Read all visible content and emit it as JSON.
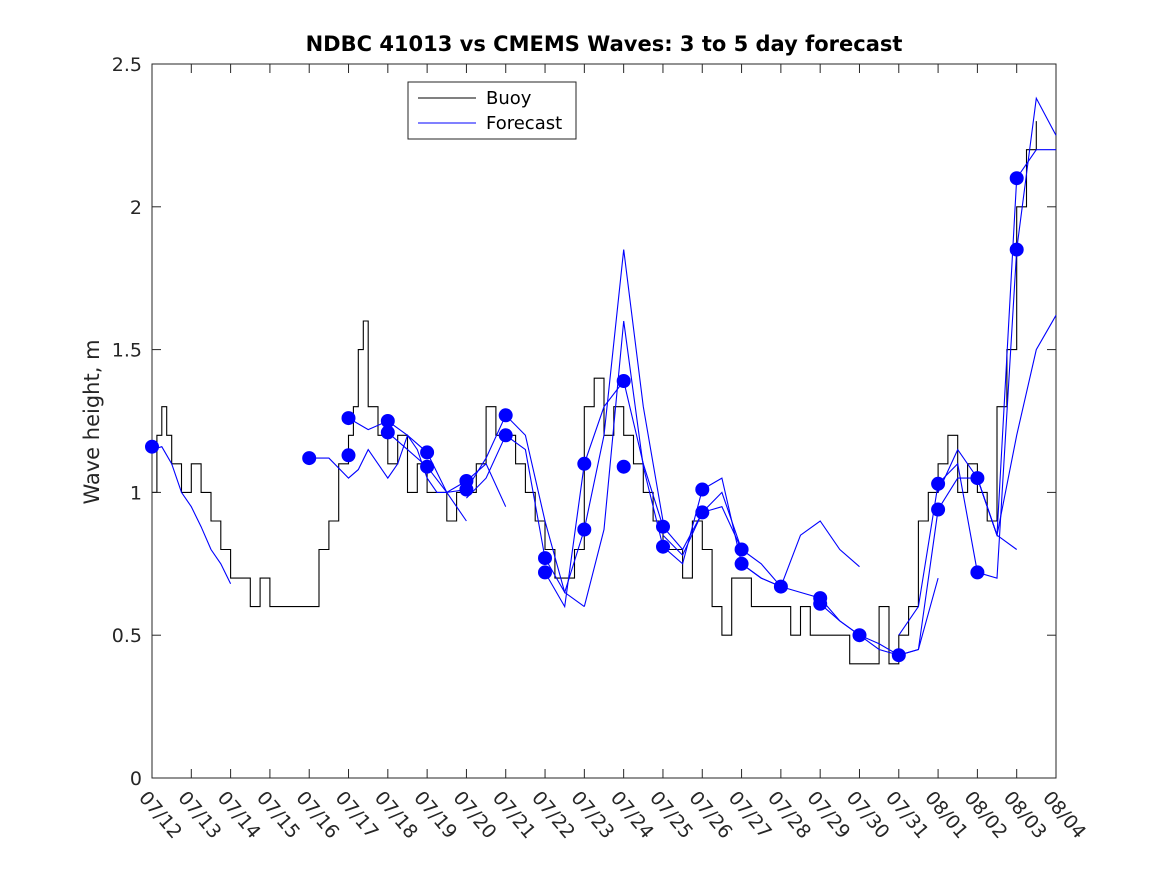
{
  "chart_data": {
    "type": "line",
    "title": "NDBC 41013 vs CMEMS Waves: 3 to 5 day forecast",
    "xlabel": "",
    "ylabel": "Wave height, m",
    "ylim": [
      0,
      2.5
    ],
    "yticks": [
      0,
      0.5,
      1,
      1.5,
      2,
      2.5
    ],
    "ytick_labels": [
      "0",
      "0.5",
      "1",
      "1.5",
      "2",
      "2.5"
    ],
    "xlim": [
      "07/12",
      "08/04"
    ],
    "xtick_labels": [
      "07/12",
      "07/13",
      "07/14",
      "07/15",
      "07/16",
      "07/17",
      "07/18",
      "07/19",
      "07/20",
      "07/21",
      "07/22",
      "07/23",
      "07/24",
      "07/25",
      "07/26",
      "07/27",
      "07/28",
      "07/29",
      "07/30",
      "07/31",
      "08/01",
      "08/02",
      "08/03",
      "08/04"
    ],
    "grid": false,
    "legend": {
      "placement": "top-center",
      "entries": [
        {
          "name": "Buoy",
          "color": "#000000"
        },
        {
          "name": "Forecast",
          "color": "#0000ff"
        }
      ]
    },
    "colors": {
      "buoy": "#000000",
      "forecast": "#0000ff",
      "marker": "#0000ff"
    },
    "series": [
      {
        "name": "Buoy",
        "step": true,
        "x": [
          "07/12 00:00",
          "07/12 03:00",
          "07/12 06:00",
          "07/12 09:00",
          "07/12 12:00",
          "07/12 18:00",
          "07/13 00:00",
          "07/13 06:00",
          "07/13 12:00",
          "07/13 18:00",
          "07/14 00:00",
          "07/14 06:00",
          "07/14 12:00",
          "07/14 18:00",
          "07/15 00:00",
          "07/15 12:00",
          "07/16 00:00",
          "07/16 06:00",
          "07/16 12:00",
          "07/16 18:00",
          "07/17 00:00",
          "07/17 03:00",
          "07/17 06:00",
          "07/17 09:00",
          "07/17 12:00",
          "07/17 18:00",
          "07/18 00:00",
          "07/18 06:00",
          "07/18 12:00",
          "07/18 18:00",
          "07/19 00:00",
          "07/19 06:00",
          "07/19 12:00",
          "07/19 18:00",
          "07/20 00:00",
          "07/20 06:00",
          "07/20 12:00",
          "07/20 18:00",
          "07/21 00:00",
          "07/21 06:00",
          "07/21 12:00",
          "07/21 18:00",
          "07/22 00:00",
          "07/22 06:00",
          "07/22 12:00",
          "07/22 18:00",
          "07/23 00:00",
          "07/23 06:00",
          "07/23 12:00",
          "07/23 18:00",
          "07/24 00:00",
          "07/24 06:00",
          "07/24 12:00",
          "07/24 18:00",
          "07/25 00:00",
          "07/25 06:00",
          "07/25 12:00",
          "07/25 18:00",
          "07/26 00:00",
          "07/26 06:00",
          "07/26 12:00",
          "07/26 18:00",
          "07/27 00:00",
          "07/27 06:00",
          "07/27 12:00",
          "07/27 18:00",
          "07/28 00:00",
          "07/28 06:00",
          "07/28 12:00",
          "07/28 18:00",
          "07/29 00:00",
          "07/29 06:00",
          "07/29 12:00",
          "07/29 18:00",
          "07/30 00:00",
          "07/30 06:00",
          "07/30 12:00",
          "07/30 18:00",
          "07/31 00:00",
          "07/31 06:00",
          "07/31 12:00",
          "07/31 18:00",
          "08/01 00:00",
          "08/01 06:00",
          "08/01 12:00",
          "08/01 18:00",
          "08/02 00:00",
          "08/02 06:00",
          "08/02 12:00",
          "08/02 18:00",
          "08/03 00:00",
          "08/03 06:00",
          "08/03 12:00"
        ],
        "values": [
          1.0,
          1.2,
          1.3,
          1.2,
          1.1,
          1.0,
          1.1,
          1.0,
          0.9,
          0.8,
          0.7,
          0.7,
          0.6,
          0.7,
          0.6,
          0.6,
          0.6,
          0.8,
          0.9,
          1.1,
          1.2,
          1.3,
          1.5,
          1.6,
          1.3,
          1.2,
          1.1,
          1.2,
          1.0,
          1.1,
          1.0,
          1.0,
          0.9,
          1.0,
          1.0,
          1.1,
          1.3,
          1.2,
          1.2,
          1.1,
          1.0,
          0.9,
          0.8,
          0.7,
          0.7,
          0.8,
          1.3,
          1.4,
          1.2,
          1.3,
          1.2,
          1.1,
          1.0,
          0.9,
          0.8,
          0.8,
          0.7,
          0.9,
          0.8,
          0.6,
          0.5,
          0.7,
          0.7,
          0.6,
          0.6,
          0.6,
          0.6,
          0.5,
          0.6,
          0.5,
          0.5,
          0.5,
          0.5,
          0.4,
          0.4,
          0.4,
          0.6,
          0.4,
          0.5,
          0.6,
          0.9,
          1.0,
          1.1,
          1.2,
          1.0,
          1.1,
          1.0,
          0.9,
          1.3,
          1.5,
          2.0,
          2.2,
          2.3
        ]
      },
      {
        "name": "Forecast",
        "x": [
          "07/12 00:00",
          "07/12 06:00",
          "07/12 12:00",
          "07/12 18:00",
          "07/13 00:00",
          "07/13 06:00",
          "07/13 12:00",
          "07/13 18:00",
          "07/14 00:00"
        ],
        "values": [
          1.15,
          1.16,
          1.1,
          1.0,
          0.95,
          0.88,
          0.8,
          0.75,
          0.68
        ]
      },
      {
        "x": [
          "07/16 00:00",
          "07/16 12:00",
          "07/17 00:00",
          "07/17 06:00",
          "07/17 12:00",
          "07/17 18:00",
          "07/18 00:00",
          "07/18 06:00",
          "07/18 12:00",
          "07/18 18:00",
          "07/19 00:00",
          "07/19 06:00",
          "07/19 12:00",
          "07/19 18:00",
          "07/20 00:00"
        ],
        "values": [
          1.12,
          1.12,
          1.05,
          1.08,
          1.15,
          1.1,
          1.05,
          1.1,
          1.2,
          1.15,
          1.05,
          1.0,
          1.0,
          0.95,
          0.9
        ]
      },
      {
        "x": [
          "07/17 00:00",
          "07/17 12:00",
          "07/18 00:00",
          "07/18 12:00",
          "07/19 00:00",
          "07/19 12:00",
          "07/20 00:00",
          "07/20 12:00",
          "07/21 00:00"
        ],
        "values": [
          1.26,
          1.22,
          1.25,
          1.2,
          1.14,
          1.0,
          1.04,
          1.1,
          0.95
        ]
      },
      {
        "x": [
          "07/18 00:00",
          "07/18 12:00",
          "07/19 00:00",
          "07/19 12:00",
          "07/20 00:00",
          "07/20 12:00",
          "07/21 00:00",
          "07/21 12:00",
          "07/22 00:00",
          "07/22 12:00",
          "07/23 00:00"
        ],
        "values": [
          1.21,
          1.15,
          1.09,
          1.0,
          1.01,
          1.12,
          1.27,
          1.2,
          0.9,
          0.65,
          0.6
        ]
      },
      {
        "x": [
          "07/20 00:00",
          "07/20 12:00",
          "07/21 00:00",
          "07/21 12:00",
          "07/22 00:00",
          "07/22 12:00",
          "07/23 00:00",
          "07/23 12:00",
          "07/24 00:00",
          "07/24 12:00",
          "07/25 00:00"
        ],
        "values": [
          0.98,
          1.05,
          1.2,
          1.15,
          0.77,
          0.65,
          0.87,
          1.2,
          1.85,
          1.3,
          0.9
        ]
      },
      {
        "x": [
          "07/22 00:00",
          "07/22 12:00",
          "07/23 00:00",
          "07/23 12:00",
          "07/24 00:00",
          "07/24 12:00",
          "07/25 00:00",
          "07/25 12:00",
          "07/26 00:00",
          "07/26 12:00",
          "07/27 00:00"
        ],
        "values": [
          0.72,
          0.6,
          1.1,
          1.3,
          1.39,
          1.1,
          0.88,
          0.8,
          0.93,
          1.0,
          0.8
        ]
      },
      {
        "x": [
          "07/23 00:00",
          "07/23 12:00",
          "07/24 00:00",
          "07/24 12:00",
          "07/25 00:00",
          "07/25 12:00",
          "07/26 00:00",
          "07/26 12:00",
          "07/27 00:00",
          "07/27 12:00",
          "07/28 00:00"
        ],
        "values": [
          0.6,
          0.87,
          1.6,
          1.09,
          0.81,
          0.75,
          1.01,
          1.05,
          0.75,
          0.7,
          0.67
        ]
      },
      {
        "x": [
          "07/25 00:00",
          "07/25 12:00",
          "07/26 00:00",
          "07/26 12:00",
          "07/27 00:00",
          "07/27 12:00",
          "07/28 00:00",
          "07/28 12:00",
          "07/29 00:00",
          "07/29 12:00",
          "07/30 00:00"
        ],
        "values": [
          0.85,
          0.78,
          0.93,
          0.95,
          0.8,
          0.75,
          0.67,
          0.85,
          0.9,
          0.8,
          0.74
        ]
      },
      {
        "x": [
          "07/27 00:00",
          "07/27 12:00",
          "07/28 00:00",
          "07/28 12:00",
          "07/29 00:00",
          "07/29 12:00",
          "07/30 00:00",
          "07/30 12:00",
          "07/31 00:00",
          "07/31 12:00",
          "08/01 00:00"
        ],
        "values": [
          0.75,
          0.7,
          0.67,
          0.65,
          0.63,
          0.55,
          0.5,
          0.45,
          0.43,
          0.45,
          0.7
        ]
      },
      {
        "x": [
          "07/29 00:00",
          "07/29 12:00",
          "07/30 00:00",
          "07/30 12:00",
          "07/31 00:00",
          "07/31 12:00",
          "08/01 00:00",
          "08/01 12:00",
          "08/02 00:00",
          "08/02 12:00",
          "08/03 00:00"
        ],
        "values": [
          0.61,
          0.55,
          0.5,
          0.47,
          0.43,
          0.45,
          0.94,
          1.05,
          1.05,
          0.85,
          0.8
        ]
      },
      {
        "x": [
          "07/31 00:00",
          "07/31 12:00",
          "08/01 00:00",
          "08/01 12:00",
          "08/02 00:00",
          "08/02 12:00",
          "08/03 00:00",
          "08/03 12:00",
          "08/04 00:00"
        ],
        "values": [
          0.5,
          0.6,
          1.03,
          1.1,
          0.72,
          0.7,
          1.85,
          2.38,
          2.25
        ]
      },
      {
        "x": [
          "08/01 00:00",
          "08/01 12:00",
          "08/02 00:00",
          "08/02 12:00",
          "08/03 00:00",
          "08/03 12:00",
          "08/04 00:00"
        ],
        "values": [
          1.0,
          1.15,
          1.05,
          0.85,
          2.1,
          2.2,
          2.2
        ]
      },
      {
        "x": [
          "08/02 00:00",
          "08/02 12:00",
          "08/03 00:00",
          "08/03 12:00",
          "08/04 00:00"
        ],
        "values": [
          1.05,
          0.85,
          1.2,
          1.5,
          1.62
        ]
      }
    ],
    "markers": {
      "x": [
        "07/12 00:00",
        "07/16 00:00",
        "07/17 00:00",
        "07/17 00:00",
        "07/18 00:00",
        "07/18 00:00",
        "07/19 00:00",
        "07/19 00:00",
        "07/20 00:00",
        "07/20 00:00",
        "07/21 00:00",
        "07/21 00:00",
        "07/22 00:00",
        "07/22 00:00",
        "07/23 00:00",
        "07/23 00:00",
        "07/24 00:00",
        "07/24 00:00",
        "07/25 00:00",
        "07/25 00:00",
        "07/26 00:00",
        "07/26 00:00",
        "07/27 00:00",
        "07/27 00:00",
        "07/28 00:00",
        "07/29 00:00",
        "07/29 00:00",
        "07/30 00:00",
        "07/31 00:00",
        "08/01 00:00",
        "08/01 00:00",
        "08/02 00:00",
        "08/02 00:00",
        "08/03 00:00",
        "08/03 00:00"
      ],
      "values": [
        1.16,
        1.12,
        1.26,
        1.13,
        1.25,
        1.21,
        1.14,
        1.09,
        1.04,
        1.01,
        1.27,
        1.2,
        0.77,
        0.72,
        1.1,
        0.87,
        1.39,
        1.09,
        0.88,
        0.81,
        1.01,
        0.93,
        0.8,
        0.75,
        0.67,
        0.63,
        0.61,
        0.5,
        0.43,
        1.03,
        0.94,
        1.05,
        0.72,
        2.1,
        1.85
      ]
    }
  }
}
